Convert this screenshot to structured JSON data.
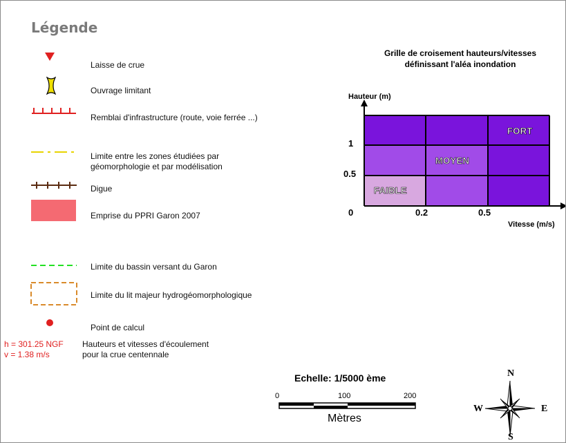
{
  "legend": {
    "title": "Légende",
    "items": [
      {
        "label": "Laisse de crue",
        "icon": "red-down-triangle"
      },
      {
        "label": "Ouvrage limitant",
        "icon": "yellow-bridge"
      },
      {
        "label": "Remblai d'infrastructure (route, voie ferrée ...)",
        "icon": "red-embankment"
      },
      {
        "label_line1": "Limite entre les zones étudiées par",
        "label_line2": "géomorphologie et par modélisation",
        "icon": "yellow-dash-dot-line"
      },
      {
        "label": "Digue",
        "icon": "brown-levee"
      },
      {
        "label": "Emprise du PPRI Garon 2007",
        "icon": "pink-rectangle"
      },
      {
        "label": "Limite du bassin versant du Garon",
        "icon": "green-dashed-line"
      },
      {
        "label": "Limite du lit majeur hydrogéomorphologique",
        "icon": "orange-dashed-rectangle"
      },
      {
        "label": "Point de calcul",
        "icon": "red-dot"
      }
    ],
    "calc_example": {
      "h": "h = 301.25 NGF",
      "v": "v = 1.38 m/s",
      "desc_line1": "Hauteurs et vitesses d'écoulement",
      "desc_line2": "pour la crue centennale"
    }
  },
  "grid": {
    "title_line1": "Grille de croisement hauteurs/vitesses",
    "title_line2": "définissant l'aléa inondation",
    "y_axis_label": "Hauteur (m)",
    "x_axis_label": "Vitesse (m/s)",
    "y_ticks": [
      "1",
      "0.5",
      "0"
    ],
    "x_ticks": [
      "0.2",
      "0.5"
    ],
    "zones": {
      "faible": "FAIBLE",
      "moyen": "MOYEN",
      "fort": "FORT"
    },
    "colors": {
      "faible": "#d8a8e0",
      "moyen": "#a14be8",
      "fort": "#7a14dc"
    }
  },
  "scale": {
    "title": "Echelle: 1/5000 ème",
    "ticks": [
      "0",
      "100",
      "200"
    ],
    "unit": "Mètres"
  },
  "compass": {
    "n": "N",
    "s": "S",
    "e": "E",
    "w": "W"
  },
  "colors": {
    "red": "#e02020",
    "yellow": "#e8d400",
    "brown": "#5a2a10",
    "pink": "#f46a72",
    "green": "#22e022",
    "orange": "#d98a2a"
  }
}
